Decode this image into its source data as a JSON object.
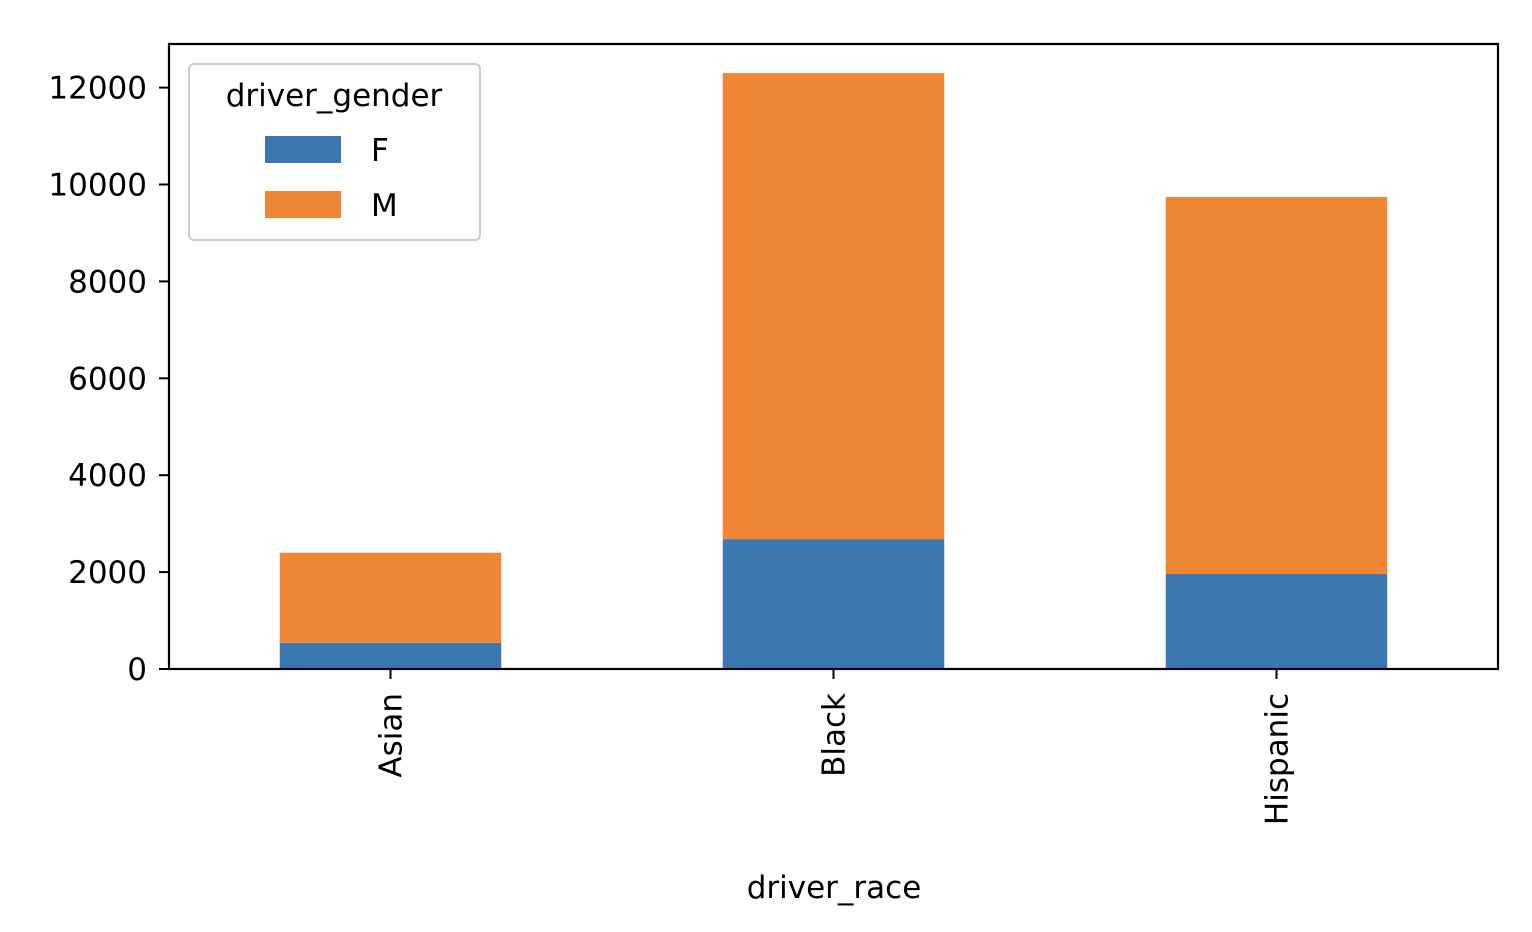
{
  "chart_data": {
    "type": "bar",
    "stacked": true,
    "categories": [
      "Asian",
      "Black",
      "Hispanic"
    ],
    "series": [
      {
        "name": "F",
        "color": "#3c77b0",
        "values": [
          540,
          2680,
          1960
        ]
      },
      {
        "name": "M",
        "color": "#ef8636",
        "values": [
          1860,
          9620,
          7780
        ]
      }
    ],
    "xlabel": "driver_race",
    "ylabel": "",
    "ylim": [
      0,
      12900
    ],
    "yticks": [
      0,
      2000,
      4000,
      6000,
      8000,
      10000,
      12000
    ],
    "legend": {
      "title": "driver_gender",
      "placement": "top-left"
    },
    "grid": false
  }
}
